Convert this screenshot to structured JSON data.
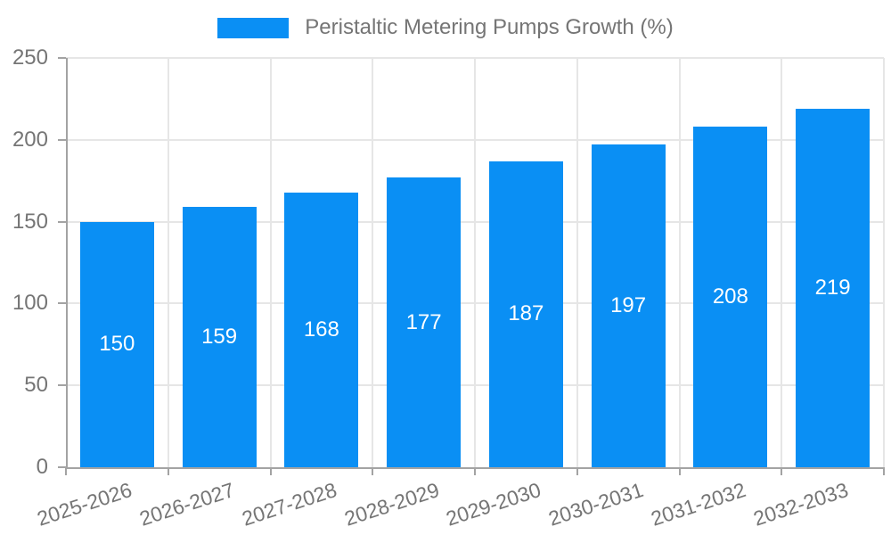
{
  "legend": {
    "label": "Peristaltic Metering Pumps Growth (%)"
  },
  "colors": {
    "bar": "#0a8ff4",
    "grid": "#e6e6e6",
    "axis": "#a3a3a3",
    "text": "#757575",
    "bar_label": "#ffffff"
  },
  "chart_data": {
    "type": "bar",
    "title": "Peristaltic Metering Pumps Growth (%)",
    "categories": [
      "2025-2026",
      "2026-2027",
      "2027-2028",
      "2028-2029",
      "2029-2030",
      "2030-2031",
      "2031-2032",
      "2032-2033"
    ],
    "values": [
      150,
      159,
      168,
      177,
      187,
      197,
      208,
      219
    ],
    "xlabel": "",
    "ylabel": "",
    "ylim": [
      0,
      250
    ],
    "yticks": [
      0,
      50,
      100,
      150,
      200,
      250
    ],
    "grid": true,
    "bar_labels": true,
    "legend_position": "top"
  }
}
